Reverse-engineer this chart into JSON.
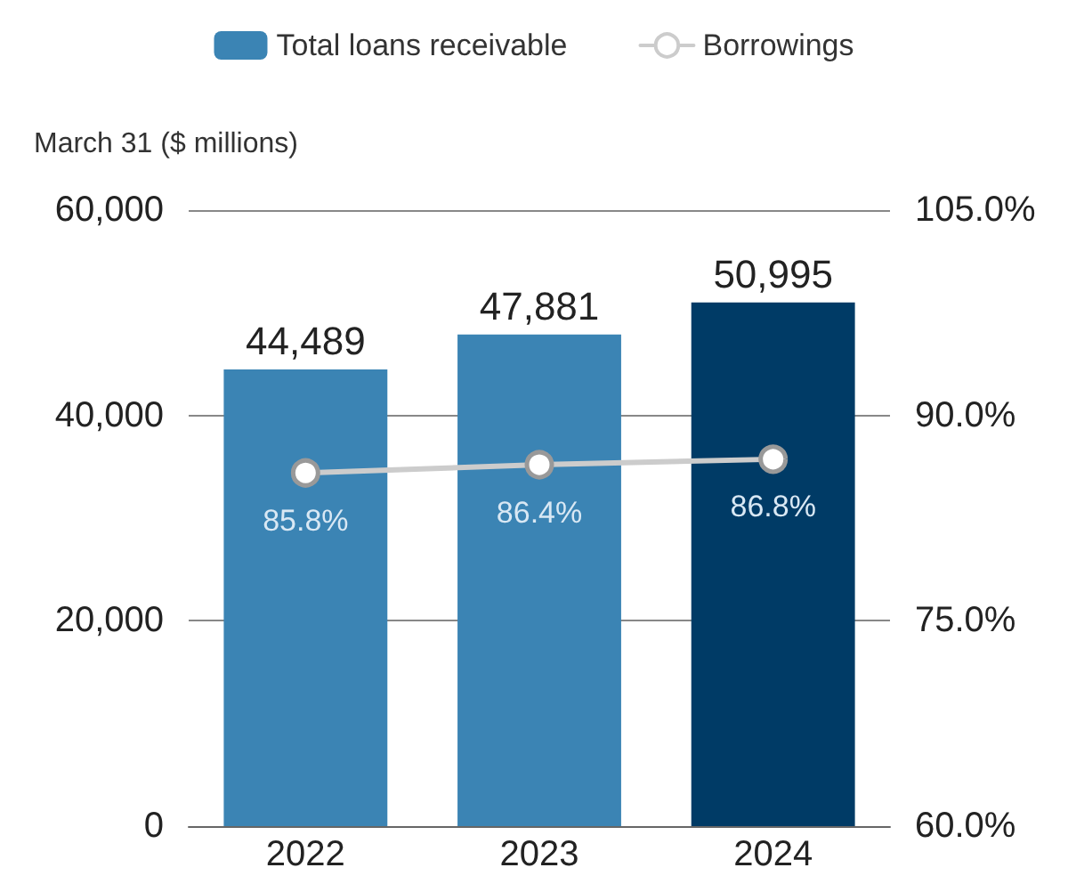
{
  "chart_data": {
    "type": "bar",
    "ylabel": "March 31 ($ millions)",
    "categories": [
      "2022",
      "2023",
      "2024"
    ],
    "series": [
      {
        "name": "Total loans receivable",
        "color": "#3b84b4",
        "colors": [
          "#3b84b4",
          "#3b84b4",
          "#003b66"
        ],
        "values": [
          44489,
          47881,
          50995
        ],
        "value_labels": [
          "44,489",
          "47,881",
          "50,995"
        ]
      },
      {
        "name": "Borrowings",
        "type": "line",
        "axis": "y2",
        "color": "#cccccc",
        "values": [
          85.8,
          86.4,
          86.8
        ],
        "value_labels": [
          "85.8%",
          "86.4%",
          "86.8%"
        ],
        "marker": "circle"
      }
    ],
    "ylim": [
      0,
      60000
    ],
    "yticks": [
      {
        "value": 0,
        "label": "0"
      },
      {
        "value": 20000,
        "label": "20,000"
      },
      {
        "value": 40000,
        "label": "40,000"
      },
      {
        "value": 60000,
        "label": "60,000"
      }
    ],
    "y2lim": [
      60,
      105
    ],
    "y2ticks": [
      {
        "value": 60,
        "label": "60.0%"
      },
      {
        "value": 75,
        "label": "75.0%"
      },
      {
        "value": 90,
        "label": "90.0%"
      },
      {
        "value": 105,
        "label": "105.0%"
      }
    ],
    "grid": "y",
    "legend": "top"
  }
}
